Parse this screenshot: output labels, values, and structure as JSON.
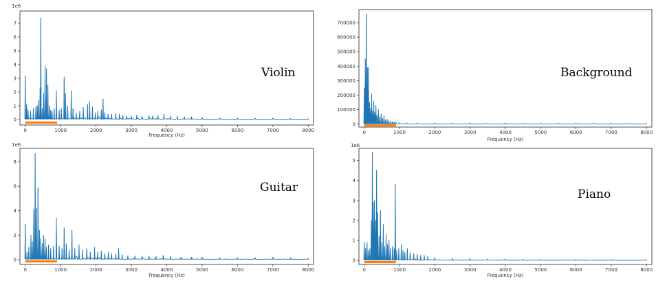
{
  "chart_data": [
    {
      "type": "line",
      "id": "violin",
      "annotation": "Violin",
      "xlabel": "Frequency (Hz)",
      "ylabel": "",
      "offset_label": "1e6",
      "xlim": [
        -150,
        8150
      ],
      "ylim": [
        -0.4,
        7.9
      ],
      "x_ticks": [
        0,
        1000,
        2000,
        3000,
        4000,
        5000,
        6000,
        7000,
        8000
      ],
      "y_ticks": [
        0,
        1,
        2,
        3,
        4,
        5,
        6,
        7
      ],
      "grid": false,
      "series_color": "#1f77b4",
      "highlight": {
        "x_range": [
          0,
          900
        ],
        "color": "#ff7f0e"
      },
      "peaks": [
        [
          0,
          3.2
        ],
        [
          40,
          1.1
        ],
        [
          80,
          0.7
        ],
        [
          150,
          0.6
        ],
        [
          230,
          0.8
        ],
        [
          300,
          0.9
        ],
        [
          340,
          1.0
        ],
        [
          380,
          1.4
        ],
        [
          420,
          2.3
        ],
        [
          440,
          7.4
        ],
        [
          480,
          0.8
        ],
        [
          520,
          1.9
        ],
        [
          560,
          3.9
        ],
        [
          600,
          3.7
        ],
        [
          640,
          2.5
        ],
        [
          680,
          1.0
        ],
        [
          720,
          0.7
        ],
        [
          760,
          0.6
        ],
        [
          820,
          0.8
        ],
        [
          880,
          2.1
        ],
        [
          960,
          0.7
        ],
        [
          1020,
          0.8
        ],
        [
          1100,
          3.1
        ],
        [
          1140,
          1.9
        ],
        [
          1200,
          1.0
        ],
        [
          1300,
          2.1
        ],
        [
          1350,
          0.8
        ],
        [
          1440,
          0.5
        ],
        [
          1540,
          0.6
        ],
        [
          1640,
          0.9
        ],
        [
          1760,
          1.1
        ],
        [
          1820,
          1.3
        ],
        [
          1900,
          0.9
        ],
        [
          1980,
          0.5
        ],
        [
          2050,
          0.6
        ],
        [
          2150,
          0.7
        ],
        [
          2200,
          1.5
        ],
        [
          2250,
          0.5
        ],
        [
          2340,
          0.4
        ],
        [
          2440,
          0.4
        ],
        [
          2560,
          0.45
        ],
        [
          2660,
          0.4
        ],
        [
          2760,
          0.3
        ],
        [
          2860,
          0.25
        ],
        [
          3000,
          0.25
        ],
        [
          3150,
          0.3
        ],
        [
          3300,
          0.25
        ],
        [
          3500,
          0.3
        ],
        [
          3600,
          0.25
        ],
        [
          3750,
          0.3
        ],
        [
          3920,
          0.4
        ],
        [
          4100,
          0.25
        ],
        [
          4300,
          0.25
        ],
        [
          4500,
          0.2
        ],
        [
          4700,
          0.2
        ],
        [
          5000,
          0.15
        ],
        [
          5500,
          0.12
        ],
        [
          6000,
          0.1
        ],
        [
          6500,
          0.1
        ],
        [
          7000,
          0.1
        ],
        [
          7500,
          0.08
        ],
        [
          8000,
          0.05
        ]
      ]
    },
    {
      "type": "line",
      "id": "background",
      "annotation": "Background",
      "xlabel": "Frequency (Hz)",
      "ylabel": "",
      "offset_label": "",
      "xlim": [
        -150,
        8150
      ],
      "ylim": [
        -20000,
        790000
      ],
      "x_ticks": [
        0,
        1000,
        2000,
        3000,
        4000,
        5000,
        6000,
        7000,
        8000
      ],
      "y_ticks": [
        0,
        100000,
        200000,
        300000,
        400000,
        500000,
        600000,
        700000
      ],
      "grid": false,
      "series_color": "#1f77b4",
      "highlight": {
        "x_range": [
          0,
          900
        ],
        "color": "#ff7f0e"
      },
      "peaks": [
        [
          0,
          250000
        ],
        [
          30,
          450000
        ],
        [
          60,
          760000
        ],
        [
          90,
          390000
        ],
        [
          120,
          390000
        ],
        [
          150,
          150000
        ],
        [
          180,
          110000
        ],
        [
          210,
          210000
        ],
        [
          240,
          90000
        ],
        [
          270,
          160000
        ],
        [
          300,
          80000
        ],
        [
          330,
          130000
        ],
        [
          360,
          60000
        ],
        [
          400,
          100000
        ],
        [
          440,
          50000
        ],
        [
          480,
          70000
        ],
        [
          520,
          40000
        ],
        [
          560,
          60000
        ],
        [
          600,
          30000
        ],
        [
          650,
          35000
        ],
        [
          700,
          25000
        ],
        [
          750,
          20000
        ],
        [
          800,
          18000
        ],
        [
          850,
          15000
        ],
        [
          900,
          12000
        ],
        [
          1000,
          10000
        ],
        [
          1200,
          8000
        ],
        [
          1500,
          7000
        ],
        [
          2000,
          6000
        ],
        [
          2500,
          5000
        ],
        [
          3000,
          8000
        ],
        [
          3500,
          5000
        ],
        [
          4000,
          7000
        ],
        [
          4500,
          5000
        ],
        [
          5000,
          4000
        ],
        [
          5500,
          4000
        ],
        [
          6000,
          3000
        ],
        [
          6500,
          3000
        ],
        [
          7000,
          2500
        ],
        [
          7500,
          2000
        ],
        [
          8000,
          2000
        ]
      ]
    },
    {
      "type": "line",
      "id": "guitar",
      "annotation": "Guitar",
      "xlabel": "Frequency (Hz)",
      "ylabel": "",
      "offset_label": "1e6",
      "xlim": [
        -150,
        8150
      ],
      "ylim": [
        -0.4,
        9.1
      ],
      "x_ticks": [
        0,
        1000,
        2000,
        3000,
        4000,
        5000,
        6000,
        7000,
        8000
      ],
      "y_ticks": [
        0,
        2,
        4,
        6,
        8
      ],
      "grid": false,
      "series_color": "#1f77b4",
      "highlight": {
        "x_range": [
          0,
          900
        ],
        "color": "#ff7f0e"
      },
      "peaks": [
        [
          0,
          2.9
        ],
        [
          50,
          0.6
        ],
        [
          100,
          1.0
        ],
        [
          160,
          2.0
        ],
        [
          200,
          1.5
        ],
        [
          240,
          4.1
        ],
        [
          280,
          8.7
        ],
        [
          320,
          4.2
        ],
        [
          360,
          5.9
        ],
        [
          400,
          2.4
        ],
        [
          440,
          1.7
        ],
        [
          480,
          1.3
        ],
        [
          520,
          2.0
        ],
        [
          560,
          1.7
        ],
        [
          600,
          1.0
        ],
        [
          660,
          1.2
        ],
        [
          720,
          0.9
        ],
        [
          800,
          1.1
        ],
        [
          880,
          3.4
        ],
        [
          960,
          1.1
        ],
        [
          1040,
          0.9
        ],
        [
          1100,
          2.6
        ],
        [
          1160,
          1.3
        ],
        [
          1240,
          0.8
        ],
        [
          1320,
          2.4
        ],
        [
          1400,
          0.9
        ],
        [
          1520,
          1.2
        ],
        [
          1620,
          0.8
        ],
        [
          1740,
          0.9
        ],
        [
          1840,
          0.6
        ],
        [
          1960,
          1.0
        ],
        [
          2050,
          0.6
        ],
        [
          2150,
          0.7
        ],
        [
          2250,
          0.5
        ],
        [
          2350,
          0.6
        ],
        [
          2440,
          0.5
        ],
        [
          2560,
          0.45
        ],
        [
          2640,
          0.9
        ],
        [
          2740,
          0.4
        ],
        [
          2900,
          0.3
        ],
        [
          3100,
          0.3
        ],
        [
          3300,
          0.3
        ],
        [
          3500,
          0.3
        ],
        [
          3700,
          0.25
        ],
        [
          3900,
          0.35
        ],
        [
          4100,
          0.25
        ],
        [
          4400,
          0.2
        ],
        [
          4700,
          0.2
        ],
        [
          5000,
          0.2
        ],
        [
          5500,
          0.15
        ],
        [
          6000,
          0.15
        ],
        [
          6500,
          0.15
        ],
        [
          7000,
          0.2
        ],
        [
          7500,
          0.15
        ],
        [
          8000,
          0.1
        ]
      ]
    },
    {
      "type": "line",
      "id": "piano",
      "annotation": "Piano",
      "xlabel": "Frequency (Hz)",
      "ylabel": "",
      "offset_label": "1e6",
      "xlim": [
        -150,
        8150
      ],
      "ylim": [
        -0.2,
        5.6
      ],
      "x_ticks": [
        0,
        1000,
        2000,
        3000,
        4000,
        5000,
        6000,
        7000,
        8000
      ],
      "y_ticks": [
        0,
        1,
        2,
        3,
        4,
        5
      ],
      "grid": false,
      "series_color": "#1f77b4",
      "highlight": {
        "x_range": [
          0,
          900
        ],
        "color": "#ff7f0e"
      },
      "peaks": [
        [
          0,
          0.9
        ],
        [
          40,
          0.6
        ],
        [
          80,
          0.9
        ],
        [
          120,
          0.5
        ],
        [
          160,
          0.6
        ],
        [
          200,
          2.0
        ],
        [
          230,
          5.4
        ],
        [
          260,
          2.9
        ],
        [
          290,
          3.0
        ],
        [
          320,
          2.0
        ],
        [
          350,
          4.5
        ],
        [
          380,
          2.4
        ],
        [
          420,
          1.2
        ],
        [
          460,
          2.5
        ],
        [
          500,
          0.9
        ],
        [
          540,
          1.8
        ],
        [
          580,
          0.7
        ],
        [
          620,
          1.3
        ],
        [
          660,
          0.8
        ],
        [
          700,
          1.0
        ],
        [
          740,
          0.6
        ],
        [
          800,
          0.7
        ],
        [
          850,
          0.6
        ],
        [
          880,
          3.8
        ],
        [
          920,
          0.5
        ],
        [
          980,
          0.6
        ],
        [
          1050,
          0.8
        ],
        [
          1100,
          0.5
        ],
        [
          1150,
          0.4
        ],
        [
          1220,
          0.6
        ],
        [
          1300,
          0.4
        ],
        [
          1400,
          0.35
        ],
        [
          1500,
          0.3
        ],
        [
          1600,
          0.25
        ],
        [
          1700,
          0.25
        ],
        [
          1800,
          0.2
        ],
        [
          2000,
          0.15
        ],
        [
          2500,
          0.12
        ],
        [
          3000,
          0.1
        ],
        [
          3500,
          0.08
        ],
        [
          4000,
          0.08
        ],
        [
          4500,
          0.06
        ],
        [
          5000,
          0.05
        ],
        [
          6000,
          0.05
        ],
        [
          7000,
          0.05
        ],
        [
          8000,
          0.04
        ]
      ]
    }
  ]
}
